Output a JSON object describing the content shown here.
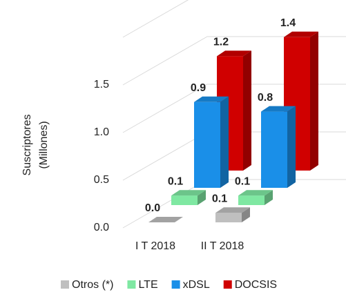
{
  "chart_data": {
    "type": "bar3d",
    "ylabel": [
      "Suscriptores",
      "(Millones)"
    ],
    "categories": [
      "I T 2018",
      "II T 2018"
    ],
    "series": [
      {
        "name": "Otros (*)",
        "color": "#bfbfbf",
        "values": [
          0.0,
          0.1
        ],
        "value_labels": [
          "0.0",
          "0.1"
        ]
      },
      {
        "name": "LTE",
        "color": "#7fe8a2",
        "values": [
          0.1,
          0.1
        ],
        "value_labels": [
          "0.1",
          "0.1"
        ]
      },
      {
        "name": "xDSL",
        "color": "#1a8fe8",
        "values": [
          0.9,
          0.8
        ],
        "value_labels": [
          "0.9",
          "0.8"
        ]
      },
      {
        "name": "DOCSIS",
        "color": "#d00000",
        "values": [
          1.2,
          1.4
        ],
        "value_labels": [
          "1.2",
          "1.4"
        ]
      }
    ],
    "ylim": [
      0,
      2
    ],
    "yticks": [
      {
        "value": 0,
        "label": "0.0"
      },
      {
        "value": 0.5,
        "label": "0.5"
      },
      {
        "value": 1,
        "label": "1.0"
      },
      {
        "value": 1.5,
        "label": "1.5"
      }
    ],
    "grid": true
  }
}
